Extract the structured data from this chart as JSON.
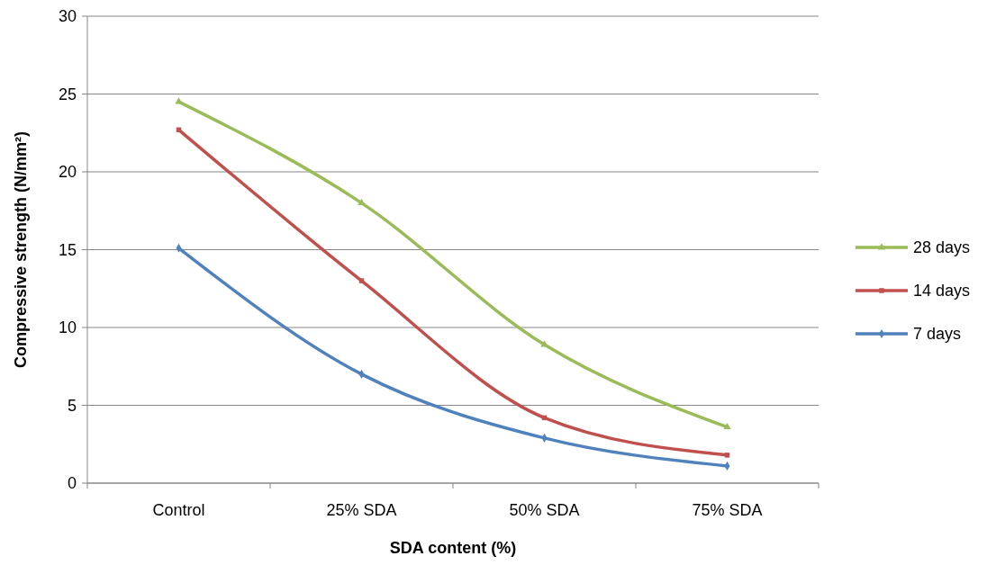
{
  "chart_data": {
    "type": "line",
    "xlabel": "SDA content (%)",
    "ylabel": "Compressive strength (N/mm²)",
    "categories": [
      "Control",
      "25% SDA",
      "50% SDA",
      "75% SDA"
    ],
    "ylim": [
      0,
      30
    ],
    "yticks": [
      0,
      5,
      10,
      15,
      20,
      25,
      30
    ],
    "grid": "y",
    "legend": "right",
    "line_style": "solid",
    "series": [
      {
        "name": "28 days",
        "color": "#9bbb59",
        "marker": "triangle",
        "values": [
          24.5,
          18.0,
          8.9,
          3.6
        ]
      },
      {
        "name": "14 days",
        "color": "#c0504d",
        "marker": "square",
        "values": [
          22.7,
          13.0,
          4.2,
          1.8
        ]
      },
      {
        "name": "7 days",
        "color": "#4f81bd",
        "marker": "diamond",
        "values": [
          15.1,
          7.0,
          2.9,
          1.1
        ]
      }
    ]
  }
}
